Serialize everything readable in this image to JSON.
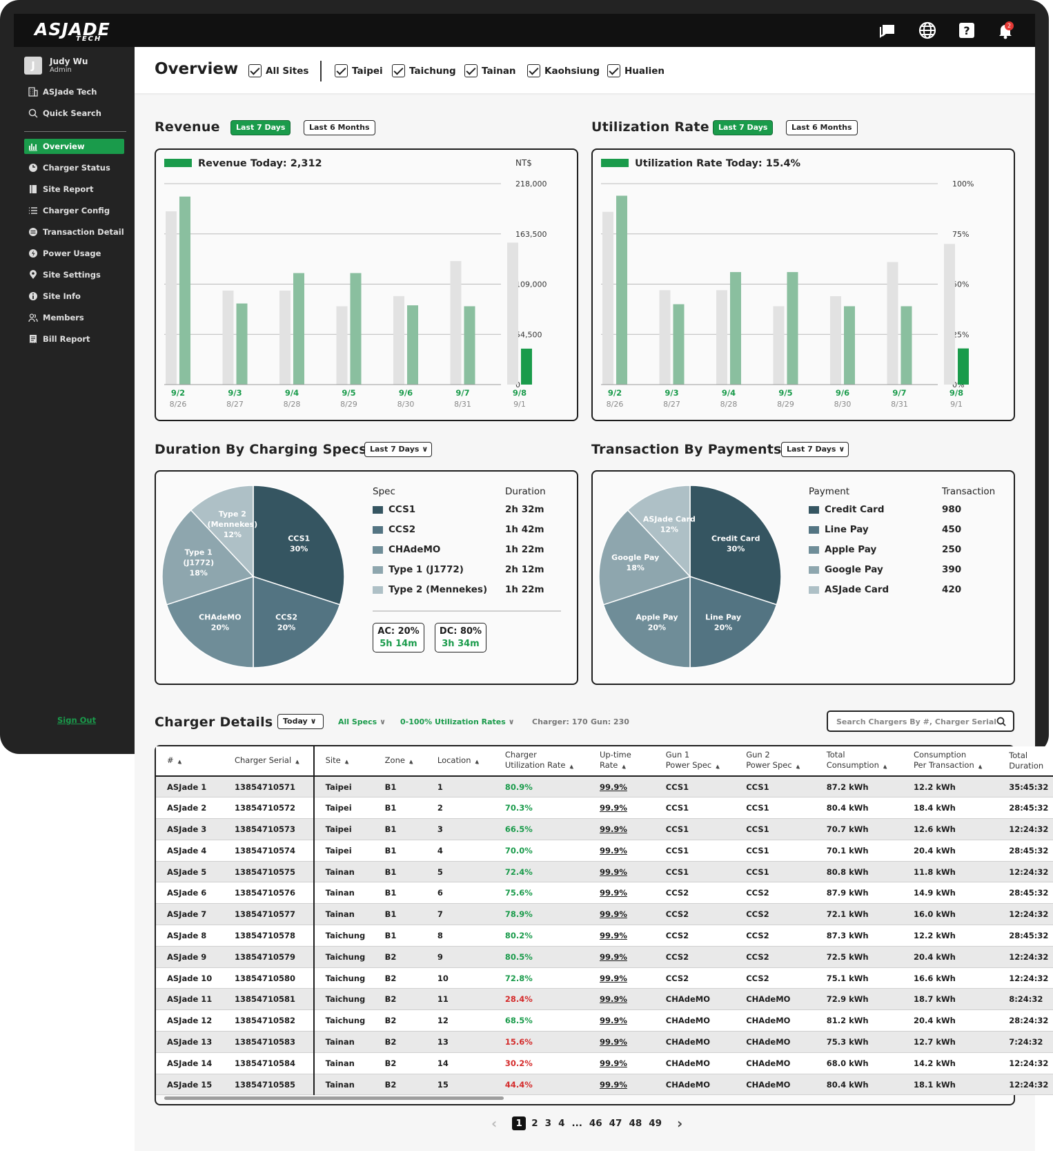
{
  "app": {
    "logo": "ASJADE",
    "logo_sub": "TECH"
  },
  "user": {
    "initial": "J",
    "name": "Judy Wu",
    "role": "Admin"
  },
  "company": "ASJade Tech",
  "quick_search": "Quick Search",
  "nav": [
    {
      "label": "Overview",
      "icon": "bar-chart-icon",
      "active": true
    },
    {
      "label": "Charger Status",
      "icon": "charger-icon"
    },
    {
      "label": "Site Report",
      "icon": "report-icon"
    },
    {
      "label": "Charger Config",
      "icon": "list-icon"
    },
    {
      "label": "Transaction Detail",
      "icon": "transaction-icon"
    },
    {
      "label": "Power Usage",
      "icon": "bolt-icon"
    },
    {
      "label": "Site Settings",
      "icon": "pin-icon"
    },
    {
      "label": "Site Info",
      "icon": "info-icon"
    },
    {
      "label": "Members",
      "icon": "members-icon"
    },
    {
      "label": "Bill Report",
      "icon": "bill-icon"
    }
  ],
  "sign_out": "Sign Out",
  "notifications_count": "2",
  "header": {
    "title": "Overview",
    "all_sites": "All Sites",
    "sites": [
      "Taipei",
      "Taichung",
      "Tainan",
      "Kaohsiung",
      "Hualien"
    ]
  },
  "revenue": {
    "title": "Revenue",
    "btn_7d": "Last 7 Days",
    "btn_6m": "Last 6 Months",
    "today_label": "Revenue Today: 2,312",
    "unit": "NT$"
  },
  "utilization": {
    "title": "Utilization Rate",
    "btn_7d": "Last 7 Days",
    "btn_6m": "Last 6 Months",
    "today_label": "Utilization Rate Today: 15.4%"
  },
  "duration": {
    "title": "Duration By Charging Specs",
    "filter": "Last 7 Days",
    "col_spec": "Spec",
    "col_duration": "Duration",
    "rows": [
      {
        "spec": "CCS1",
        "duration": "2h 32m",
        "color": "#355561"
      },
      {
        "spec": "CCS2",
        "duration": "1h 42m",
        "color": "#537482"
      },
      {
        "spec": "CHAdeMO",
        "duration": "1h 22m",
        "color": "#6f8d98"
      },
      {
        "spec": "Type 1 (J1772)",
        "duration": "2h 12m",
        "color": "#8ea6ae"
      },
      {
        "spec": "Type 2 (Mennekes)",
        "duration": "1h 22m",
        "color": "#aec0c6"
      }
    ],
    "pie_labels": [
      {
        "name": "CCS1",
        "pct": "30%"
      },
      {
        "name": "CCS2",
        "pct": "20%"
      },
      {
        "name": "CHAdeMO",
        "pct": "20%"
      },
      {
        "name": "Type 1\n(J1772)",
        "pct": "18%"
      },
      {
        "name": "Type 2\n(Mennekes)",
        "pct": "12%"
      }
    ],
    "ac_label": "AC: 20%",
    "ac_time": "5h 14m",
    "dc_label": "DC: 80%",
    "dc_time": "3h 34m"
  },
  "payments": {
    "title": "Transaction By Payments",
    "filter": "Last 7 Days",
    "col_payment": "Payment",
    "col_transaction": "Transaction",
    "rows": [
      {
        "payment": "Credit Card",
        "count": "980",
        "color": "#355561"
      },
      {
        "payment": "Line Pay",
        "count": "450",
        "color": "#537482"
      },
      {
        "payment": "Apple Pay",
        "count": "250",
        "color": "#6f8d98"
      },
      {
        "payment": "Google Pay",
        "count": "390",
        "color": "#8ea6ae"
      },
      {
        "payment": "ASJade Card",
        "count": "420",
        "color": "#aec0c6"
      }
    ],
    "pie_labels": [
      {
        "name": "Credit Card",
        "pct": "30%"
      },
      {
        "name": "Line Pay",
        "pct": "20%"
      },
      {
        "name": "Apple Pay",
        "pct": "20%"
      },
      {
        "name": "Google Pay",
        "pct": "18%"
      },
      {
        "name": "ASJade Card",
        "pct": "12%"
      }
    ]
  },
  "details": {
    "title": "Charger Details",
    "filter_today": "Today",
    "filter_specs": "All Specs",
    "filter_util": "0-100% Utilization Rates",
    "charger_count": "Charger: 170",
    "gun_count": "Gun: 230",
    "search_placeholder": "Search Chargers By #, Charger Serial",
    "columns": [
      "#",
      "Charger Serial",
      "Site",
      "Zone",
      "Location",
      "Charger\nUtilization Rate",
      "Up-time\nRate",
      "Gun 1\nPower Spec",
      "Gun 2\nPower Spec",
      "Total\nConsumption",
      "Consumption\nPer Transaction",
      "Total\nDuration"
    ],
    "rows": [
      [
        "ASJade 1",
        "13854710571",
        "Taipei",
        "B1",
        "1",
        "80.9%",
        "99.9%",
        "CCS1",
        "CCS1",
        "87.2 kWh",
        "12.2 kWh",
        "35:45:32"
      ],
      [
        "ASJade 2",
        "13854710572",
        "Taipei",
        "B1",
        "2",
        "70.3%",
        "99.9%",
        "CCS1",
        "CCS1",
        "80.4 kWh",
        "18.4 kWh",
        "28:45:32"
      ],
      [
        "ASJade 3",
        "13854710573",
        "Taipei",
        "B1",
        "3",
        "66.5%",
        "99.9%",
        "CCS1",
        "CCS1",
        "70.7 kWh",
        "12.6 kWh",
        "12:24:32"
      ],
      [
        "ASJade 4",
        "13854710574",
        "Taipei",
        "B1",
        "4",
        "70.0%",
        "99.9%",
        "CCS1",
        "CCS1",
        "70.1 kWh",
        "20.4 kWh",
        "28:45:32"
      ],
      [
        "ASJade 5",
        "13854710575",
        "Tainan",
        "B1",
        "5",
        "72.4%",
        "99.9%",
        "CCS1",
        "CCS1",
        "80.8 kWh",
        "11.8 kWh",
        "12:24:32"
      ],
      [
        "ASJade 6",
        "13854710576",
        "Tainan",
        "B1",
        "6",
        "75.6%",
        "99.9%",
        "CCS2",
        "CCS2",
        "87.9 kWh",
        "14.9 kWh",
        "28:45:32"
      ],
      [
        "ASJade 7",
        "13854710577",
        "Tainan",
        "B1",
        "7",
        "78.9%",
        "99.9%",
        "CCS2",
        "CCS2",
        "72.1 kWh",
        "16.0 kWh",
        "12:24:32"
      ],
      [
        "ASJade 8",
        "13854710578",
        "Taichung",
        "B1",
        "8",
        "80.2%",
        "99.9%",
        "CCS2",
        "CCS2",
        "87.3 kWh",
        "12.2 kWh",
        "28:45:32"
      ],
      [
        "ASJade 9",
        "13854710579",
        "Taichung",
        "B2",
        "9",
        "80.5%",
        "99.9%",
        "CCS2",
        "CCS2",
        "72.5 kWh",
        "20.4 kWh",
        "12:24:32"
      ],
      [
        "ASJade 10",
        "13854710580",
        "Taichung",
        "B2",
        "10",
        "72.8%",
        "99.9%",
        "CCS2",
        "CCS2",
        "75.1 kWh",
        "16.6 kWh",
        "12:24:32"
      ],
      [
        "ASJade 11",
        "13854710581",
        "Taichung",
        "B2",
        "11",
        "28.4%",
        "99.9%",
        "CHAdeMO",
        "CHAdeMO",
        "72.9 kWh",
        "18.7 kWh",
        "8:24:32"
      ],
      [
        "ASJade 12",
        "13854710582",
        "Taichung",
        "B2",
        "12",
        "68.5%",
        "99.9%",
        "CHAdeMO",
        "CHAdeMO",
        "81.2 kWh",
        "20.4 kWh",
        "28:24:32"
      ],
      [
        "ASJade 13",
        "13854710583",
        "Tainan",
        "B2",
        "13",
        "15.6%",
        "99.9%",
        "CHAdeMO",
        "CHAdeMO",
        "75.3 kWh",
        "12.7 kWh",
        "7:24:32"
      ],
      [
        "ASJade 14",
        "13854710584",
        "Tainan",
        "B2",
        "14",
        "30.2%",
        "99.9%",
        "CHAdeMO",
        "CHAdeMO",
        "68.0 kWh",
        "14.2 kWh",
        "12:24:32"
      ],
      [
        "ASJade 15",
        "13854710585",
        "Tainan",
        "B2",
        "15",
        "44.4%",
        "99.9%",
        "CHAdeMO",
        "CHAdeMO",
        "80.4 kWh",
        "18.1 kWh",
        "12:24:32"
      ]
    ],
    "red_threshold": 50
  },
  "pagination": {
    "current": "1",
    "pages": [
      "2",
      "3",
      "4",
      "...",
      "46",
      "47",
      "48",
      "49"
    ]
  },
  "colors": {
    "accent": "#1a9b4b",
    "bar_current": "#8abf9f",
    "bar_prev": "#e2e2e2",
    "bar_today": "#1a9b4b"
  },
  "chart_data": [
    {
      "type": "bar",
      "title": "Revenue",
      "categories": [
        "9/2",
        "9/3",
        "9/4",
        "9/5",
        "9/6",
        "9/7",
        "9/8"
      ],
      "sub_categories": [
        "8/26",
        "8/27",
        "8/28",
        "8/29",
        "8/30",
        "8/31",
        "9/1"
      ],
      "series": [
        {
          "values": [
            188000,
            102000,
            102000,
            85000,
            96000,
            134000,
            154000
          ]
        },
        {
          "values": [
            204000,
            88000,
            121000,
            121000,
            86000,
            85000,
            39000
          ]
        }
      ],
      "yticks": [
        "0",
        "54,500",
        "109,000",
        "163,500",
        "218,000"
      ],
      "ylim": [
        0,
        218000
      ],
      "ylabel": "NT$"
    },
    {
      "type": "bar",
      "title": "Utilization Rate",
      "categories": [
        "9/2",
        "9/3",
        "9/4",
        "9/5",
        "9/6",
        "9/7",
        "9/8"
      ],
      "sub_categories": [
        "8/26",
        "8/27",
        "8/28",
        "8/29",
        "8/30",
        "8/31",
        "9/1"
      ],
      "series": [
        {
          "values": [
            86,
            47,
            47,
            39,
            44,
            61,
            70
          ]
        },
        {
          "values": [
            94,
            40,
            56,
            56,
            39,
            39,
            18
          ]
        }
      ],
      "yticks": [
        "0%",
        "25%",
        "50%",
        "75%",
        "100%"
      ],
      "ylim": [
        0,
        100
      ]
    },
    {
      "type": "pie",
      "title": "Duration By Charging Specs",
      "labels": [
        "CCS1",
        "CCS2",
        "CHAdeMO",
        "Type 1 (J1772)",
        "Type 2 (Mennekes)"
      ],
      "values": [
        30,
        20,
        20,
        18,
        12
      ]
    },
    {
      "type": "pie",
      "title": "Transaction By Payments",
      "labels": [
        "Credit Card",
        "Line Pay",
        "Apple Pay",
        "Google Pay",
        "ASJade Card"
      ],
      "values": [
        30,
        20,
        20,
        18,
        12
      ]
    }
  ]
}
